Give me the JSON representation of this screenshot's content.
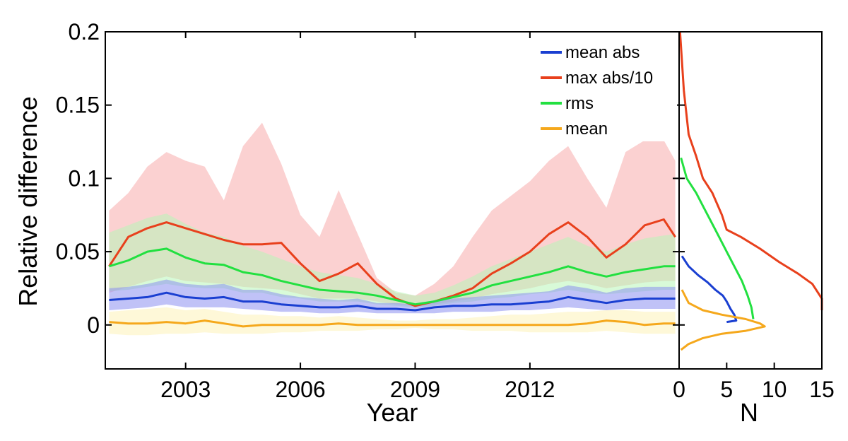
{
  "chart_data": [
    {
      "type": "line",
      "xlabel": "Year",
      "ylabel": "Relative difference",
      "xlim": [
        2000.9,
        2015.9
      ],
      "ylim": [
        -0.03,
        0.2
      ],
      "xticks": [
        2003,
        2006,
        2009,
        2012
      ],
      "xtick_labels": [
        "2003",
        "2006",
        "2009",
        "2012"
      ],
      "yticks": [
        0,
        0.05,
        0.1,
        0.15,
        0.2
      ],
      "ytick_labels": [
        "0",
        "0.05",
        "0.1",
        "0.15",
        "0.2"
      ],
      "grid": false,
      "legend_position": "top-right",
      "x": [
        2001.0,
        2001.5,
        2002.0,
        2002.5,
        2003.0,
        2003.5,
        2004.0,
        2004.5,
        2005.0,
        2005.5,
        2006.0,
        2006.5,
        2007.0,
        2007.5,
        2008.0,
        2008.5,
        2009.0,
        2009.5,
        2010.0,
        2010.5,
        2011.0,
        2011.5,
        2012.0,
        2012.5,
        2013.0,
        2013.5,
        2014.0,
        2014.5,
        2015.0,
        2015.5,
        2015.8
      ],
      "series": [
        {
          "name": "mean abs",
          "color": "#1a3fd1",
          "band_color": "#8c8ff0",
          "values": [
            0.017,
            0.018,
            0.019,
            0.022,
            0.019,
            0.018,
            0.019,
            0.016,
            0.016,
            0.014,
            0.013,
            0.012,
            0.012,
            0.013,
            0.011,
            0.011,
            0.01,
            0.012,
            0.013,
            0.013,
            0.014,
            0.014,
            0.015,
            0.016,
            0.019,
            0.017,
            0.015,
            0.017,
            0.018,
            0.018,
            0.018
          ],
          "band_low": [
            0.01,
            0.011,
            0.012,
            0.014,
            0.012,
            0.012,
            0.012,
            0.011,
            0.01,
            0.009,
            0.009,
            0.008,
            0.008,
            0.009,
            0.008,
            0.008,
            0.008,
            0.008,
            0.009,
            0.009,
            0.009,
            0.01,
            0.01,
            0.011,
            0.012,
            0.011,
            0.01,
            0.011,
            0.011,
            0.011,
            0.011
          ],
          "band_high": [
            0.025,
            0.026,
            0.028,
            0.031,
            0.028,
            0.027,
            0.028,
            0.024,
            0.024,
            0.021,
            0.019,
            0.018,
            0.017,
            0.018,
            0.015,
            0.015,
            0.014,
            0.016,
            0.018,
            0.019,
            0.02,
            0.021,
            0.022,
            0.023,
            0.027,
            0.025,
            0.022,
            0.025,
            0.026,
            0.026,
            0.026
          ]
        },
        {
          "name": "max abs/10",
          "color": "#e8401c",
          "band_color": "#f9b8b8",
          "values": [
            0.04,
            0.06,
            0.066,
            0.07,
            0.066,
            0.062,
            0.058,
            0.055,
            0.055,
            0.056,
            0.042,
            0.03,
            0.035,
            0.042,
            0.028,
            0.018,
            0.013,
            0.016,
            0.02,
            0.025,
            0.035,
            0.042,
            0.05,
            0.062,
            0.07,
            0.06,
            0.046,
            0.055,
            0.068,
            0.072,
            0.06
          ],
          "band_low": [
            0.022,
            0.026,
            0.03,
            0.033,
            0.03,
            0.029,
            0.028,
            0.026,
            0.025,
            0.024,
            0.021,
            0.018,
            0.018,
            0.018,
            0.016,
            0.014,
            0.013,
            0.014,
            0.016,
            0.018,
            0.021,
            0.023,
            0.025,
            0.028,
            0.03,
            0.028,
            0.025,
            0.027,
            0.029,
            0.03,
            0.03
          ],
          "band_high": [
            0.078,
            0.09,
            0.108,
            0.118,
            0.112,
            0.108,
            0.085,
            0.122,
            0.138,
            0.11,
            0.075,
            0.06,
            0.092,
            0.062,
            0.032,
            0.022,
            0.02,
            0.028,
            0.04,
            0.06,
            0.078,
            0.088,
            0.098,
            0.112,
            0.122,
            0.1,
            0.08,
            0.118,
            0.126,
            0.126,
            0.112
          ]
        },
        {
          "name": "rms",
          "color": "#22e040",
          "band_color": "#b8f5b8",
          "values": [
            0.04,
            0.044,
            0.05,
            0.052,
            0.046,
            0.042,
            0.041,
            0.036,
            0.034,
            0.03,
            0.027,
            0.024,
            0.023,
            0.022,
            0.02,
            0.017,
            0.014,
            0.016,
            0.019,
            0.022,
            0.027,
            0.03,
            0.033,
            0.036,
            0.04,
            0.036,
            0.033,
            0.036,
            0.038,
            0.04,
            0.04
          ],
          "band_low": [
            0.023,
            0.024,
            0.026,
            0.028,
            0.026,
            0.025,
            0.025,
            0.022,
            0.022,
            0.019,
            0.018,
            0.016,
            0.016,
            0.016,
            0.014,
            0.013,
            0.012,
            0.013,
            0.015,
            0.016,
            0.018,
            0.019,
            0.021,
            0.022,
            0.024,
            0.022,
            0.021,
            0.022,
            0.023,
            0.024,
            0.024
          ],
          "band_high": [
            0.063,
            0.068,
            0.073,
            0.076,
            0.069,
            0.063,
            0.06,
            0.054,
            0.05,
            0.045,
            0.04,
            0.036,
            0.034,
            0.032,
            0.028,
            0.023,
            0.02,
            0.022,
            0.027,
            0.033,
            0.04,
            0.045,
            0.05,
            0.055,
            0.06,
            0.054,
            0.05,
            0.055,
            0.059,
            0.061,
            0.062
          ]
        },
        {
          "name": "mean",
          "color": "#f5a81c",
          "band_color": "#fdf2b8",
          "values": [
            0.002,
            0.001,
            0.001,
            0.002,
            0.001,
            0.003,
            0.001,
            -0.001,
            0.0,
            0.0,
            0.0,
            0.0,
            0.001,
            0.0,
            0.0,
            0.0,
            0.0,
            0.0,
            0.0,
            0.0,
            0.0,
            0.0,
            0.0,
            0.0,
            0.0,
            0.001,
            0.003,
            0.002,
            0.0,
            0.001,
            0.001
          ],
          "band_low": [
            -0.006,
            -0.007,
            -0.007,
            -0.006,
            -0.006,
            -0.005,
            -0.006,
            -0.006,
            -0.006,
            -0.005,
            -0.005,
            -0.004,
            -0.004,
            -0.004,
            -0.003,
            -0.003,
            -0.002,
            -0.003,
            -0.003,
            -0.004,
            -0.004,
            -0.004,
            -0.005,
            -0.005,
            -0.005,
            -0.005,
            -0.004,
            -0.005,
            -0.006,
            -0.006,
            -0.006
          ],
          "band_high": [
            0.009,
            0.01,
            0.011,
            0.012,
            0.01,
            0.011,
            0.009,
            0.007,
            0.007,
            0.006,
            0.006,
            0.005,
            0.006,
            0.005,
            0.004,
            0.003,
            0.003,
            0.004,
            0.004,
            0.005,
            0.006,
            0.007,
            0.007,
            0.008,
            0.009,
            0.009,
            0.01,
            0.01,
            0.009,
            0.009,
            0.009
          ]
        }
      ]
    },
    {
      "type": "line",
      "xlabel": "N",
      "ylabel": "",
      "xlim": [
        0,
        15
      ],
      "ylim": [
        -0.03,
        0.2
      ],
      "xticks": [
        0,
        5,
        10,
        15
      ],
      "xtick_labels": [
        "0",
        "5",
        "10",
        "15"
      ],
      "grid": false,
      "series": [
        {
          "name": "mean abs",
          "color": "#1a3fd1",
          "points": [
            [
              0.3,
              0.047
            ],
            [
              1.0,
              0.04
            ],
            [
              2.0,
              0.034
            ],
            [
              3.0,
              0.029
            ],
            [
              3.8,
              0.024
            ],
            [
              4.6,
              0.02
            ],
            [
              5.0,
              0.016
            ],
            [
              5.4,
              0.011
            ],
            [
              5.8,
              0.007
            ],
            [
              6.0,
              0.003
            ],
            [
              5.0,
              0.002
            ]
          ]
        },
        {
          "name": "max abs/10",
          "color": "#e8401c",
          "points": [
            [
              0.1,
              0.2
            ],
            [
              0.5,
              0.16
            ],
            [
              1.0,
              0.13
            ],
            [
              1.8,
              0.115
            ],
            [
              2.5,
              0.1
            ],
            [
              3.5,
              0.09
            ],
            [
              4.5,
              0.075
            ],
            [
              5.0,
              0.065
            ],
            [
              6.5,
              0.06
            ],
            [
              8.5,
              0.052
            ],
            [
              10.5,
              0.043
            ],
            [
              12.5,
              0.035
            ],
            [
              14.0,
              0.028
            ],
            [
              15.0,
              0.018
            ],
            [
              15.0,
              0.01
            ]
          ]
        },
        {
          "name": "rms",
          "color": "#22e040",
          "points": [
            [
              0.2,
              0.114
            ],
            [
              0.8,
              0.1
            ],
            [
              1.8,
              0.09
            ],
            [
              2.6,
              0.08
            ],
            [
              3.4,
              0.07
            ],
            [
              4.2,
              0.06
            ],
            [
              5.0,
              0.05
            ],
            [
              5.8,
              0.04
            ],
            [
              6.6,
              0.03
            ],
            [
              7.2,
              0.02
            ],
            [
              7.6,
              0.012
            ],
            [
              7.8,
              0.004
            ]
          ]
        },
        {
          "name": "mean",
          "color": "#f5a81c",
          "points": [
            [
              0.3,
              0.024
            ],
            [
              1.0,
              0.015
            ],
            [
              2.5,
              0.01
            ],
            [
              4.5,
              0.007
            ],
            [
              7.0,
              0.004
            ],
            [
              8.5,
              0.001
            ],
            [
              9.0,
              -0.001
            ],
            [
              7.0,
              -0.004
            ],
            [
              4.5,
              -0.006
            ],
            [
              2.5,
              -0.009
            ],
            [
              1.0,
              -0.013
            ],
            [
              0.2,
              -0.017
            ]
          ]
        }
      ]
    }
  ]
}
